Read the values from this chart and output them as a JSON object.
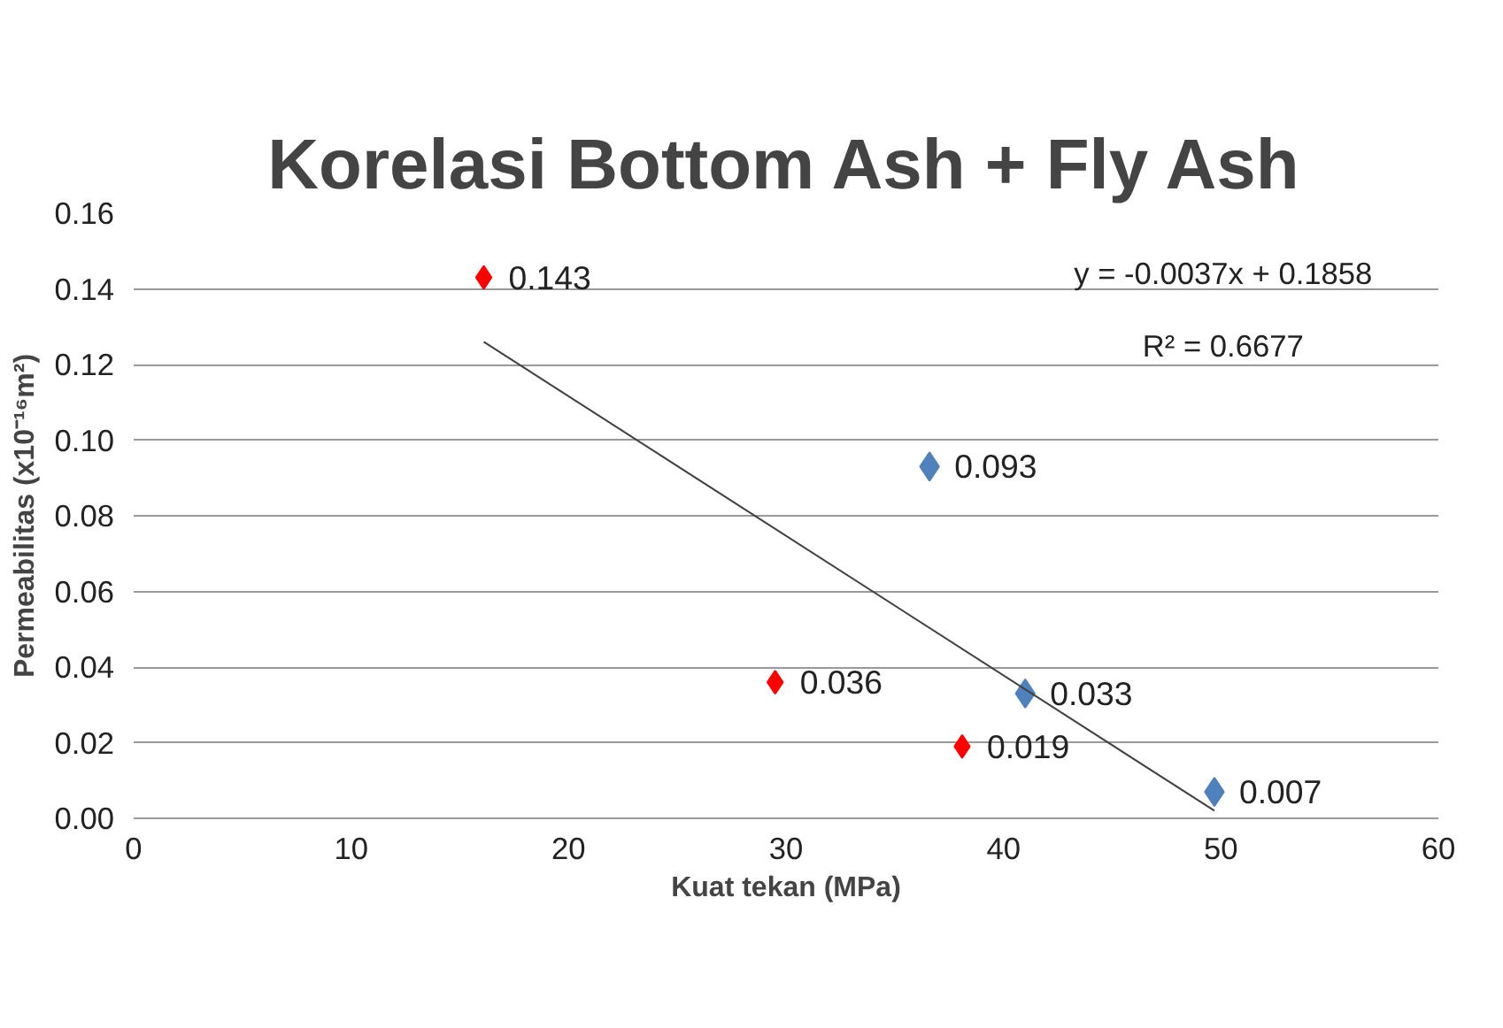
{
  "chart_data": {
    "type": "scatter",
    "title": "Korelasi Bottom Ash + Fly Ash",
    "xlabel": "Kuat tekan (MPa)",
    "ylabel": "Permeabilitas (x10⁻¹⁶m²)",
    "series": [
      {
        "color": "#ff0000",
        "x": [
          16.1,
          29.5,
          38.1
        ],
        "values": [
          0.143,
          0.036,
          0.019
        ],
        "value_labels": [
          "0.143",
          "0.036",
          "0.019"
        ]
      },
      {
        "color": "#4f81bd",
        "x": [
          36.6,
          41.0,
          49.7
        ],
        "values": [
          0.093,
          0.033,
          0.007
        ],
        "value_labels": [
          "0.093",
          "0.033",
          "0.007"
        ]
      },
      {
        "type": "line",
        "color": "#404040",
        "x": [
          16.1,
          49.7
        ],
        "values": [
          0.126,
          0.002
        ],
        "marker": "none"
      }
    ],
    "annotations": [
      "y = -0.0037x + 0.1858",
      "R² = 0.6677"
    ],
    "marker": "diamond",
    "grid": "y",
    "xlim": [
      0,
      60
    ],
    "xticks": [
      0,
      10,
      20,
      30,
      40,
      50,
      60
    ],
    "ylim": [
      0,
      0.16
    ],
    "yticks": [
      {
        "value": 0,
        "label": "0.00"
      },
      0.02,
      0.04,
      0.06,
      0.08,
      {
        "value": 0.1,
        "label": "0.10"
      },
      0.12,
      0.14,
      0.16
    ]
  }
}
